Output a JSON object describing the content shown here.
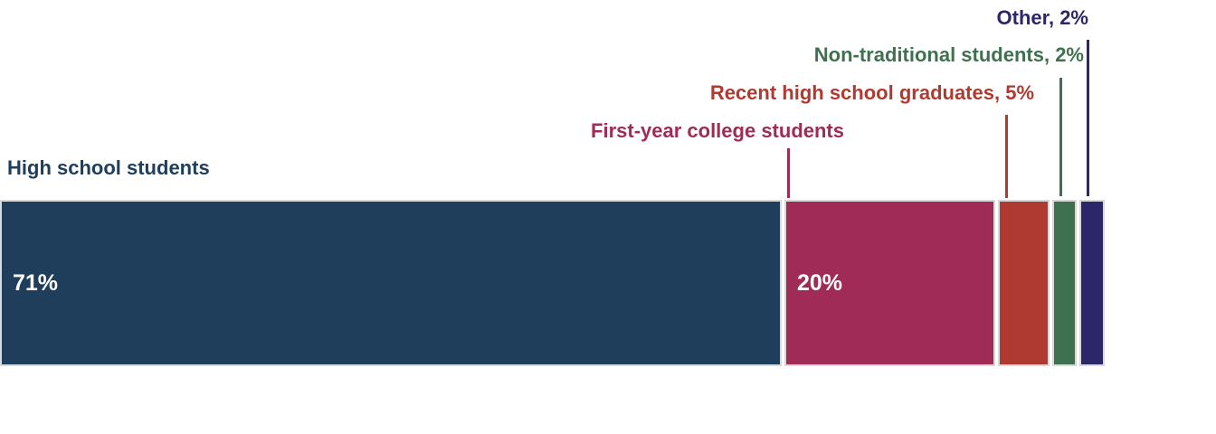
{
  "chart_data": {
    "type": "bar",
    "subtype": "horizontal-stacked-single-bar",
    "title": "",
    "xlabel": "",
    "ylabel": "",
    "unit": "%",
    "xlim": [
      0,
      100
    ],
    "grid": false,
    "legend_position": "callout-labels",
    "background_color": "#FFFFFF",
    "segment_border_color": "#D9D9D9",
    "categories": [
      "High school students",
      "First-year college students",
      "Recent high school graduates",
      "Non-traditional students",
      "Other"
    ],
    "values": [
      71,
      20,
      5,
      2,
      2
    ],
    "segments": [
      {
        "label": "High school students",
        "value": 71,
        "value_label": "71%",
        "callout": "High school students",
        "color": "#1E3E5C"
      },
      {
        "label": "First-year college students",
        "value": 20,
        "value_label": "20%",
        "callout": "First-year college students",
        "color": "#A02B57"
      },
      {
        "label": "Recent high school graduates",
        "value": 5,
        "value_label": "",
        "callout": "Recent high school graduates, 5%",
        "color": "#AE3A32"
      },
      {
        "label": "Non-traditional students",
        "value": 2,
        "value_label": "",
        "callout": "Non-traditional students, 2%",
        "color": "#3F7150"
      },
      {
        "label": "Other",
        "value": 2,
        "value_label": "",
        "callout": "Other, 2%",
        "color": "#2B2768"
      }
    ]
  }
}
